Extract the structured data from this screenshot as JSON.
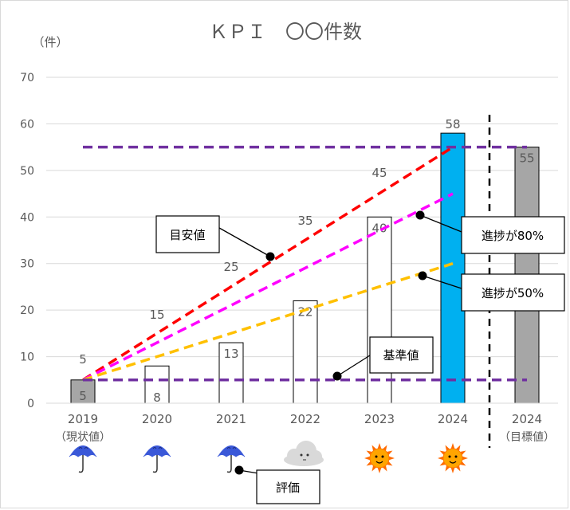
{
  "chart_data": {
    "type": "bar",
    "title": "ＫＰＩ　〇〇件数",
    "unit_label": "（件）",
    "ylim": [
      0,
      70
    ],
    "yticks": [
      0,
      10,
      20,
      30,
      40,
      50,
      60,
      70
    ],
    "grid": true,
    "categories": [
      {
        "year": "2019",
        "sub": "（現状値）",
        "value": 5,
        "fill": "#a6a6a6",
        "weather": "rain"
      },
      {
        "year": "2020",
        "sub": "",
        "value": 8,
        "fill": "#ffffff",
        "weather": "rain"
      },
      {
        "year": "2021",
        "sub": "",
        "value": 13,
        "fill": "#ffffff",
        "weather": "rain"
      },
      {
        "year": "2022",
        "sub": "",
        "value": 22,
        "fill": "#ffffff",
        "weather": "cloud"
      },
      {
        "year": "2023",
        "sub": "",
        "value": 40,
        "fill": "#ffffff",
        "weather": "sun"
      },
      {
        "year": "2024",
        "sub": "",
        "value": 58,
        "fill": "#00b0f0",
        "weather": "sun"
      },
      {
        "year": "2024",
        "sub": "（目標値）",
        "value": 55,
        "fill": "#a6a6a6",
        "weather": ""
      }
    ],
    "target_labels": [
      {
        "index": 0,
        "value": 5
      },
      {
        "index": 1,
        "value": 15
      },
      {
        "index": 2,
        "value": 25
      },
      {
        "index": 3,
        "value": 35
      },
      {
        "index": 4,
        "value": 45
      }
    ],
    "lines": [
      {
        "name": "目安値",
        "color": "#ff0000",
        "from": [
          0,
          5
        ],
        "to": [
          5,
          55
        ]
      },
      {
        "name": "進捗が80%",
        "color": "#ff00ff",
        "from": [
          0,
          5
        ],
        "to": [
          5,
          45
        ]
      },
      {
        "name": "進捗が50%",
        "color": "#ffc000",
        "from": [
          0,
          5
        ],
        "to": [
          5,
          30
        ]
      },
      {
        "name": "基準値",
        "color": "#7030a0",
        "from": [
          0,
          5
        ],
        "to": [
          6,
          5
        ]
      },
      {
        "name": "目標",
        "color": "#7030a0",
        "from": [
          0,
          55
        ],
        "to": [
          6,
          55
        ]
      }
    ],
    "callouts": [
      {
        "text": "目安値"
      },
      {
        "text": "進捗が80%"
      },
      {
        "text": "進捗が50%"
      },
      {
        "text": "基準値"
      },
      {
        "text": "評価"
      }
    ]
  },
  "colors": {
    "rain": "#3a58d8",
    "sun": "#ff8c00",
    "cloud": "#d9d9d9",
    "grid": "#d9d9d9",
    "axis_text": "#595959"
  }
}
